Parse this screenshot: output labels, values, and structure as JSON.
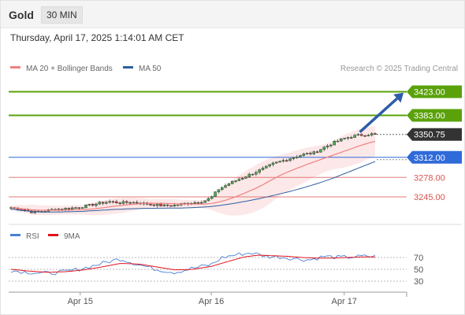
{
  "header": {
    "instrument": "Gold",
    "timeframe": "30 MIN"
  },
  "datetime": "Thursday, April 17, 2025 1:14:01 AM CET",
  "credit": "Research © 2025 Trading Central",
  "colors": {
    "bull": "#5aa10a",
    "bear_support": "#d9534f",
    "pivot": "#2f6ad9",
    "price": "#333333",
    "candle_up": "#4caf50",
    "candle_down": "#e53935",
    "bb_fill": "#fce4e4",
    "ma20": "#f08080",
    "ma50": "#2e5e9e",
    "rsi": "#4a7fd6",
    "rsi_ma": "#e3131b",
    "arrow": "#2e5ca8"
  },
  "chart_data": [
    {
      "type": "candlestick",
      "title": "",
      "legend": [
        {
          "label": "MA 20 + Bollinger Bands",
          "color": "#f08080"
        },
        {
          "label": "MA 50",
          "color": "#2e5e9e"
        }
      ],
      "legend_position": "top-left",
      "ylim": [
        3205,
        3445
      ],
      "x_ticks": [
        {
          "label": "Apr 15",
          "x": 0.19
        },
        {
          "label": "Apr 16",
          "x": 0.55
        },
        {
          "label": "Apr 17",
          "x": 0.915
        }
      ],
      "levels": [
        {
          "value": 3423.0,
          "label": "3423.00",
          "kind": "resistance"
        },
        {
          "value": 3383.0,
          "label": "3383.00",
          "kind": "resistance"
        },
        {
          "value": 3350.75,
          "label": "3350.75",
          "kind": "last-price"
        },
        {
          "value": 3312.0,
          "label": "3312.00",
          "kind": "pivot"
        },
        {
          "value": 3278.0,
          "label": "3278.00",
          "kind": "support"
        },
        {
          "value": 3245.0,
          "label": "3245.00",
          "kind": "support"
        }
      ],
      "close_anchors": [
        [
          0,
          3227
        ],
        [
          0.03,
          3224
        ],
        [
          0.06,
          3219
        ],
        [
          0.09,
          3221
        ],
        [
          0.12,
          3224
        ],
        [
          0.15,
          3225
        ],
        [
          0.18,
          3227
        ],
        [
          0.21,
          3230
        ],
        [
          0.24,
          3234
        ],
        [
          0.27,
          3237
        ],
        [
          0.3,
          3235
        ],
        [
          0.33,
          3236
        ],
        [
          0.36,
          3234
        ],
        [
          0.39,
          3232
        ],
        [
          0.42,
          3230
        ],
        [
          0.45,
          3231
        ],
        [
          0.48,
          3234
        ],
        [
          0.51,
          3236
        ],
        [
          0.53,
          3238
        ],
        [
          0.55,
          3244
        ],
        [
          0.57,
          3258
        ],
        [
          0.6,
          3268
        ],
        [
          0.63,
          3276
        ],
        [
          0.66,
          3284
        ],
        [
          0.69,
          3292
        ],
        [
          0.72,
          3301
        ],
        [
          0.75,
          3307
        ],
        [
          0.78,
          3313
        ],
        [
          0.81,
          3318
        ],
        [
          0.83,
          3319
        ],
        [
          0.86,
          3329
        ],
        [
          0.89,
          3338
        ],
        [
          0.92,
          3345
        ],
        [
          0.95,
          3349
        ],
        [
          1.0,
          3352
        ]
      ],
      "arrow": {
        "from": [
          0.945,
          3350.75
        ],
        "to": [
          1.0,
          3424
        ]
      }
    },
    {
      "type": "line",
      "title": "RSI",
      "legend": [
        {
          "label": "RSI",
          "color": "#4a7fd6"
        },
        {
          "label": "9MA",
          "color": "#e3131b"
        }
      ],
      "ylim": [
        18,
        82
      ],
      "y_ticks": [
        70,
        50,
        30
      ],
      "reference_lines": [
        70,
        50,
        30
      ],
      "rsi_anchors": [
        [
          0,
          48
        ],
        [
          0.05,
          45
        ],
        [
          0.1,
          43
        ],
        [
          0.15,
          46
        ],
        [
          0.2,
          52
        ],
        [
          0.25,
          60
        ],
        [
          0.3,
          68
        ],
        [
          0.35,
          58
        ],
        [
          0.4,
          50
        ],
        [
          0.45,
          45
        ],
        [
          0.5,
          52
        ],
        [
          0.55,
          58
        ],
        [
          0.58,
          70
        ],
        [
          0.62,
          75
        ],
        [
          0.66,
          78
        ],
        [
          0.7,
          72
        ],
        [
          0.74,
          71
        ],
        [
          0.78,
          68
        ],
        [
          0.82,
          66
        ],
        [
          0.86,
          72
        ],
        [
          0.9,
          70
        ],
        [
          0.94,
          71
        ],
        [
          0.97,
          72
        ],
        [
          1.0,
          72
        ]
      ],
      "ma_anchors": [
        [
          0,
          50
        ],
        [
          0.05,
          47
        ],
        [
          0.1,
          45
        ],
        [
          0.15,
          46
        ],
        [
          0.2,
          49
        ],
        [
          0.25,
          54
        ],
        [
          0.3,
          60
        ],
        [
          0.35,
          59
        ],
        [
          0.4,
          54
        ],
        [
          0.45,
          49
        ],
        [
          0.5,
          50
        ],
        [
          0.55,
          55
        ],
        [
          0.6,
          64
        ],
        [
          0.64,
          71
        ],
        [
          0.68,
          74
        ],
        [
          0.72,
          73
        ],
        [
          0.76,
          72
        ],
        [
          0.8,
          70
        ],
        [
          0.84,
          69
        ],
        [
          0.88,
          69
        ],
        [
          0.92,
          70
        ],
        [
          0.96,
          71
        ],
        [
          1.0,
          71
        ]
      ]
    }
  ]
}
